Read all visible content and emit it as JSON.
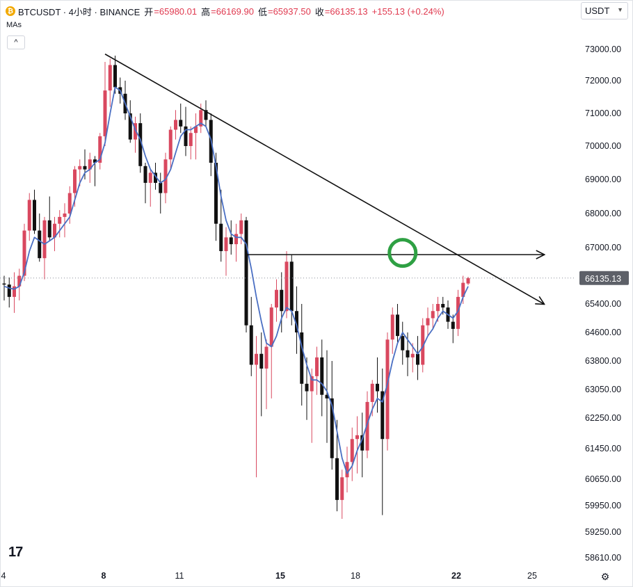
{
  "header": {
    "coin_glyph": "₿",
    "symbol": "BTCUSDT · 4小时 · BINANCE",
    "open_label": "开",
    "open": "=65980.01",
    "high_label": "高",
    "high": "=66169.90",
    "low_label": "低",
    "low": "=65937.50",
    "close_label": "收",
    "close": "=66135.13",
    "change": "+155.13 (+0.24%)",
    "indicator": "MAs",
    "collapse_icon": "^"
  },
  "currency_selector": {
    "value": "USDT",
    "icon": "chevron-down-icon"
  },
  "logo_text": "17",
  "settings_icon": "gear-icon",
  "colors": {
    "up": "#d9485f",
    "down": "#111111",
    "ma": "#4a6fc3",
    "trend": "#111111",
    "circle": "#2ea043",
    "price_label_bg": "#5d6068"
  },
  "chart_data": {
    "type": "candlestick",
    "y_ticks": [
      73000,
      72000,
      71000,
      70000,
      69000,
      68000,
      67000,
      65400,
      64600,
      63800,
      63050,
      62250,
      61450,
      60650,
      59950,
      59250,
      58610
    ],
    "y_tick_labels": [
      "73000.00",
      "72000.00",
      "71000.00",
      "70000.00",
      "69000.00",
      "68000.00",
      "67000.00",
      "65400.00",
      "64600.00",
      "63800.00",
      "63050.00",
      "62250.00",
      "61450.00",
      "60650.00",
      "59950.00",
      "59250.00",
      "58610.00"
    ],
    "x_ticks": [
      4,
      8,
      11,
      15,
      18,
      22,
      25
    ],
    "x_tick_labels": [
      "4",
      "8",
      "11",
      "15",
      "18",
      "22",
      "25"
    ],
    "x_bold": [
      "8",
      "15",
      "22"
    ],
    "current_price": 66135.13,
    "current_price_label": "66135.13",
    "candles": [
      [
        65980,
        66200,
        65500,
        65950
      ],
      [
        65950,
        66150,
        65300,
        65600
      ],
      [
        65600,
        66300,
        65150,
        65900
      ],
      [
        65900,
        66400,
        65500,
        66200
      ],
      [
        66200,
        67700,
        66050,
        67500
      ],
      [
        67500,
        68600,
        67200,
        68400
      ],
      [
        68400,
        68700,
        67400,
        67500
      ],
      [
        67500,
        68000,
        66600,
        66700
      ],
      [
        66700,
        67900,
        66100,
        67800
      ],
      [
        67800,
        68500,
        67200,
        67300
      ],
      [
        67300,
        67900,
        66900,
        67700
      ],
      [
        67700,
        68100,
        67300,
        67900
      ],
      [
        67900,
        68300,
        67300,
        68000
      ],
      [
        68000,
        68800,
        67700,
        68600
      ],
      [
        68600,
        69400,
        68200,
        69300
      ],
      [
        69300,
        69600,
        68800,
        69400
      ],
      [
        69400,
        69900,
        69000,
        69300
      ],
      [
        69300,
        69800,
        68900,
        69600
      ],
      [
        69600,
        69700,
        68800,
        69500
      ],
      [
        69500,
        70400,
        69300,
        70300
      ],
      [
        70300,
        72600,
        70000,
        71700
      ],
      [
        71700,
        72700,
        71200,
        72500
      ],
      [
        72500,
        72800,
        71600,
        71800
      ],
      [
        71800,
        72100,
        71300,
        71600
      ],
      [
        71600,
        72000,
        70800,
        71000
      ],
      [
        71000,
        71400,
        70100,
        70200
      ],
      [
        70200,
        70900,
        69800,
        70700
      ],
      [
        70700,
        71000,
        69200,
        69400
      ],
      [
        69400,
        69500,
        68300,
        68900
      ],
      [
        68900,
        69300,
        68200,
        69200
      ],
      [
        69200,
        69500,
        68700,
        68900
      ],
      [
        68900,
        69200,
        68000,
        68600
      ],
      [
        68600,
        69800,
        68300,
        69600
      ],
      [
        69600,
        70600,
        69300,
        70500
      ],
      [
        70500,
        71100,
        70200,
        70800
      ],
      [
        70800,
        71300,
        70400,
        70600
      ],
      [
        70600,
        71200,
        69700,
        70000
      ],
      [
        70000,
        70600,
        69600,
        70400
      ],
      [
        70400,
        71000,
        69600,
        70600
      ],
      [
        70600,
        71300,
        70400,
        71100
      ],
      [
        71100,
        71400,
        70600,
        70800
      ],
      [
        70800,
        71000,
        69100,
        69500
      ],
      [
        69500,
        69800,
        67200,
        67700
      ],
      [
        67700,
        68700,
        66600,
        66900
      ],
      [
        66900,
        67600,
        66200,
        67300
      ],
      [
        67300,
        67800,
        66800,
        67100
      ],
      [
        67100,
        67700,
        66600,
        67400
      ],
      [
        67400,
        68000,
        67100,
        67800
      ],
      [
        67800,
        67900,
        64600,
        64800
      ],
      [
        64800,
        65600,
        63400,
        63700
      ],
      [
        63700,
        64500,
        60700,
        64000
      ],
      [
        64000,
        64600,
        62300,
        63600
      ],
      [
        63600,
        64400,
        62500,
        64200
      ],
      [
        64200,
        65400,
        62800,
        65300
      ],
      [
        65300,
        66100,
        64900,
        65800
      ],
      [
        65800,
        66300,
        64600,
        65200
      ],
      [
        65200,
        66900,
        65000,
        66600
      ],
      [
        66600,
        66800,
        64800,
        65200
      ],
      [
        65200,
        65900,
        64000,
        64600
      ],
      [
        64600,
        65400,
        62600,
        63200
      ],
      [
        63200,
        63900,
        62200,
        63000
      ],
      [
        63000,
        63600,
        61600,
        63400
      ],
      [
        63400,
        64200,
        62900,
        63900
      ],
      [
        63900,
        64400,
        62300,
        62900
      ],
      [
        62900,
        64100,
        61600,
        62800
      ],
      [
        62800,
        63800,
        60900,
        61200
      ],
      [
        61200,
        62200,
        59800,
        60100
      ],
      [
        60100,
        60900,
        59600,
        60700
      ],
      [
        60700,
        61500,
        60300,
        61100
      ],
      [
        61100,
        62000,
        60600,
        61700
      ],
      [
        61700,
        62300,
        60800,
        61800
      ],
      [
        61800,
        62400,
        60700,
        61400
      ],
      [
        61400,
        63000,
        61200,
        62700
      ],
      [
        62700,
        63300,
        62300,
        63200
      ],
      [
        63200,
        63900,
        62400,
        63000
      ],
      [
        63000,
        63600,
        59700,
        61700
      ],
      [
        61700,
        64600,
        61400,
        64400
      ],
      [
        64400,
        65300,
        64000,
        65100
      ],
      [
        65100,
        65400,
        64300,
        64500
      ],
      [
        64500,
        64900,
        63700,
        64100
      ],
      [
        64100,
        64600,
        63400,
        63900
      ],
      [
        63900,
        64300,
        63500,
        64000
      ],
      [
        64000,
        64500,
        63300,
        63700
      ],
      [
        63700,
        65000,
        63500,
        64800
      ],
      [
        64800,
        65300,
        64500,
        65000
      ],
      [
        65000,
        65400,
        64700,
        65200
      ],
      [
        65200,
        65600,
        64900,
        65400
      ],
      [
        65400,
        65600,
        65100,
        65300
      ],
      [
        65300,
        65500,
        64700,
        64900
      ],
      [
        64900,
        65100,
        64300,
        64700
      ],
      [
        64700,
        65800,
        64500,
        65600
      ],
      [
        65600,
        66200,
        65400,
        66000
      ],
      [
        65980,
        66170,
        65937,
        66135
      ]
    ],
    "ma": [
      65900,
      65850,
      65820,
      65900,
      66300,
      66900,
      67300,
      67200,
      67100,
      67200,
      67300,
      67500,
      67700,
      67900,
      68400,
      68900,
      69200,
      69300,
      69500,
      69600,
      70100,
      71000,
      71800,
      71700,
      71300,
      70900,
      70500,
      70200,
      69700,
      69300,
      69100,
      68900,
      69000,
      69300,
      69800,
      70300,
      70500,
      70500,
      70600,
      70700,
      70600,
      70200,
      69400,
      68500,
      67800,
      67400,
      67300,
      67300,
      67100,
      66400,
      65600,
      64900,
      64300,
      64200,
      64500,
      65000,
      65300,
      65200,
      64800,
      64200,
      63700,
      63300,
      63300,
      63200,
      63000,
      62600,
      61900,
      61200,
      60800,
      61000,
      61400,
      61700,
      62100,
      62500,
      62800,
      62700,
      63200,
      63800,
      64300,
      64600,
      64400,
      64200,
      64000,
      64200,
      64500,
      64700,
      65000,
      65200,
      65100,
      65000,
      65200,
      65600,
      65900
    ],
    "annotations": [
      {
        "kind": "trendline",
        "from": [
          20,
          72850
        ],
        "to": [
          107,
          65400
        ],
        "arrow": true
      },
      {
        "kind": "horizontal",
        "from": [
          48,
          66800
        ],
        "to": [
          107,
          66800
        ],
        "arrow": true
      },
      {
        "kind": "circle",
        "at": [
          79,
          66850
        ]
      }
    ]
  }
}
